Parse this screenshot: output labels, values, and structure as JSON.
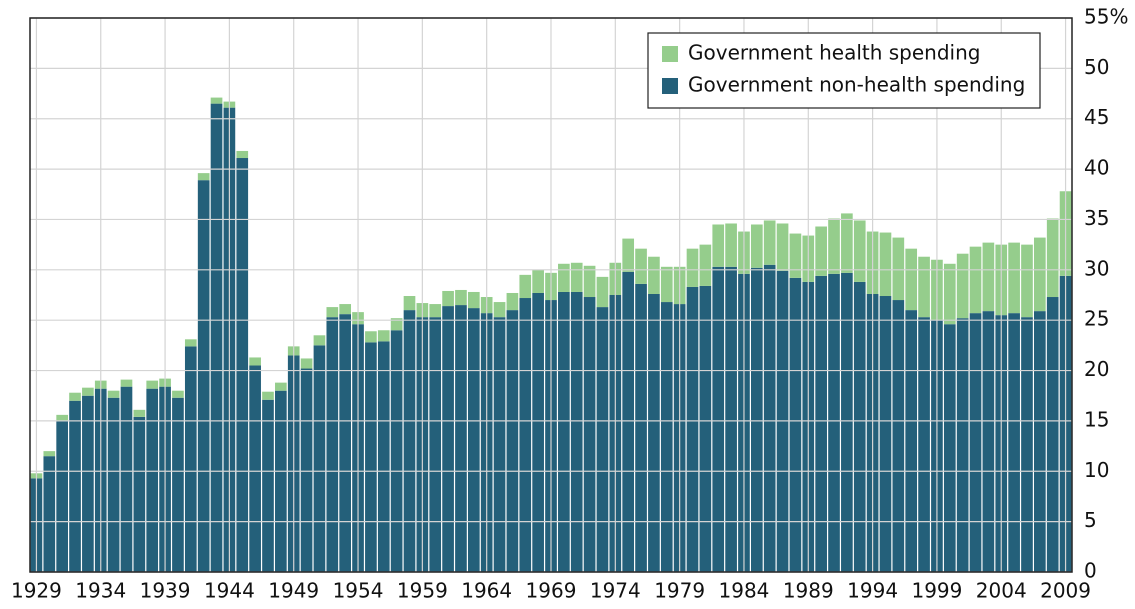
{
  "chart_data": {
    "type": "stacked_bar",
    "categories": [
      "1929",
      null,
      null,
      null,
      null,
      "1934",
      null,
      null,
      null,
      null,
      "1939",
      null,
      null,
      null,
      null,
      "1944",
      null,
      null,
      null,
      null,
      "1949",
      null,
      null,
      null,
      null,
      "1954",
      null,
      null,
      null,
      null,
      "1959",
      null,
      null,
      null,
      null,
      "1964",
      null,
      null,
      null,
      null,
      "1969",
      null,
      null,
      null,
      null,
      "1974",
      null,
      null,
      null,
      null,
      "1979",
      null,
      null,
      null,
      null,
      "1984",
      null,
      null,
      null,
      null,
      "1989",
      null,
      null,
      null,
      null,
      "1994",
      null,
      null,
      null,
      null,
      "1999",
      null,
      null,
      null,
      null,
      "2004",
      null,
      null,
      null,
      null,
      "2009"
    ],
    "series": [
      {
        "name": "Government non-health spending",
        "color": "#24607a",
        "values": [
          9.3,
          11.5,
          15.0,
          17.0,
          17.5,
          18.2,
          17.3,
          18.4,
          15.4,
          18.2,
          18.4,
          17.3,
          22.4,
          38.9,
          46.5,
          46.1,
          41.1,
          20.5,
          17.1,
          18.0,
          21.5,
          20.2,
          22.5,
          25.3,
          25.6,
          24.6,
          22.8,
          22.9,
          24.0,
          26.0,
          25.3,
          25.3,
          26.4,
          26.5,
          26.2,
          25.7,
          25.3,
          26.0,
          27.2,
          27.7,
          27.0,
          27.8,
          27.8,
          27.3,
          26.3,
          27.5,
          29.8,
          28.6,
          27.6,
          26.8,
          26.6,
          28.3,
          28.4,
          30.3,
          30.3,
          29.6,
          30.2,
          30.5,
          29.9,
          29.2,
          28.8,
          29.4,
          29.6,
          29.7,
          28.8,
          27.6,
          27.4,
          27.0,
          26.0,
          25.3,
          25.0,
          24.6,
          25.2,
          25.7,
          25.9,
          25.5,
          25.7,
          25.3,
          25.9,
          27.3,
          29.4
        ]
      },
      {
        "name": "Government health spending",
        "color": "#95cd8c",
        "values": [
          0.5,
          0.5,
          0.6,
          0.8,
          0.8,
          0.8,
          0.7,
          0.7,
          0.7,
          0.8,
          0.8,
          0.7,
          0.7,
          0.7,
          0.6,
          0.6,
          0.7,
          0.8,
          0.8,
          0.8,
          0.9,
          1.0,
          1.0,
          1.0,
          1.0,
          1.2,
          1.1,
          1.1,
          1.2,
          1.4,
          1.4,
          1.3,
          1.5,
          1.5,
          1.6,
          1.6,
          1.5,
          1.7,
          2.3,
          2.3,
          2.7,
          2.8,
          2.9,
          3.1,
          3.0,
          3.2,
          3.3,
          3.5,
          3.7,
          3.5,
          3.7,
          3.8,
          4.1,
          4.2,
          4.3,
          4.2,
          4.3,
          4.4,
          4.7,
          4.4,
          4.6,
          4.9,
          5.5,
          5.9,
          6.1,
          6.2,
          6.3,
          6.2,
          6.1,
          6.0,
          6.0,
          6.0,
          6.4,
          6.6,
          6.8,
          7.0,
          7.0,
          7.2,
          7.3,
          7.8,
          8.4
        ]
      }
    ],
    "ylim": [
      0,
      55
    ],
    "yticks": [
      0,
      5,
      10,
      15,
      20,
      25,
      30,
      35,
      40,
      45,
      50,
      {
        "value": 55,
        "label": "55%"
      }
    ],
    "grid": true,
    "legend": "upper right"
  }
}
